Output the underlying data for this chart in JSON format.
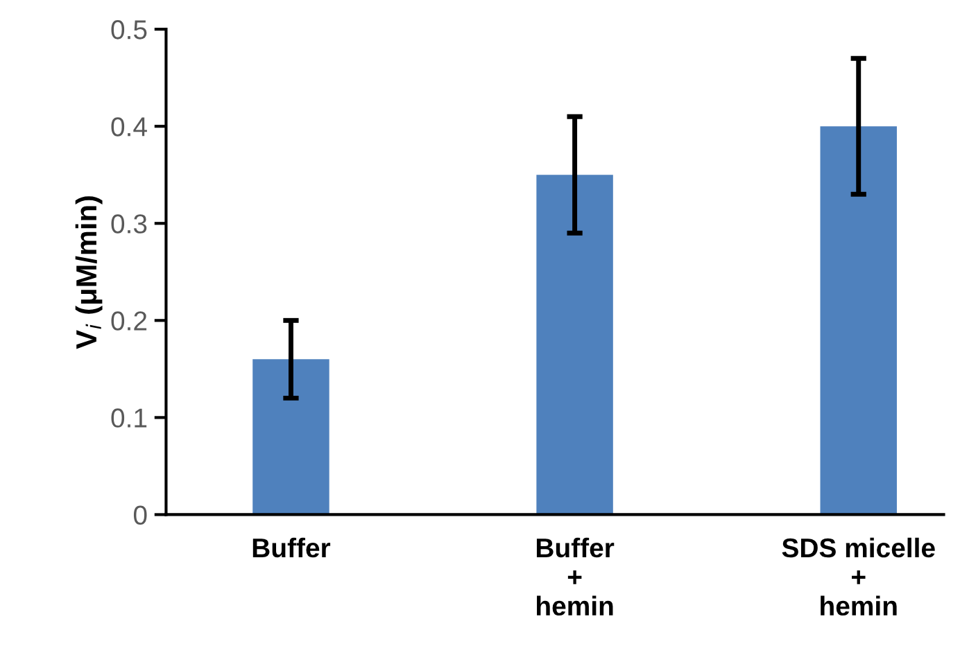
{
  "chart_data": {
    "type": "bar",
    "ylabel": "V$_{i}$ (μM/min)",
    "categories": [
      "Buffer",
      "Buffer\n+\nhemin",
      "SDS micelle\n+\nhemin"
    ],
    "values": [
      0.16,
      0.35,
      0.4
    ],
    "errors": [
      [
        0.12,
        0.2
      ],
      [
        0.29,
        0.41
      ],
      [
        0.33,
        0.47
      ]
    ],
    "color": "#4f81bd",
    "ylim": [
      0,
      0.5
    ],
    "yticks": [
      0,
      0.1,
      0.2,
      0.3,
      0.4,
      0.5
    ],
    "grid": false,
    "legend": false
  }
}
